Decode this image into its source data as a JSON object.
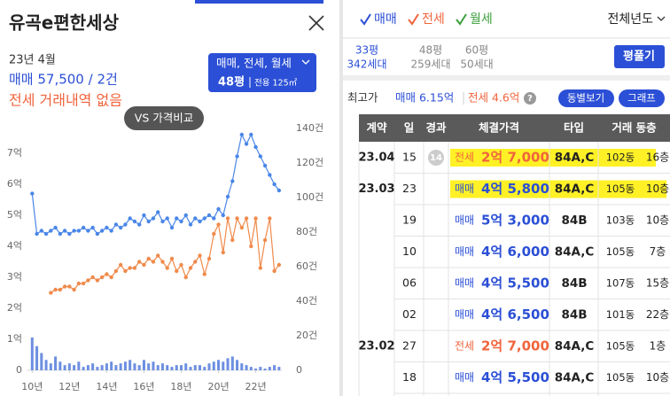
{
  "header": {
    "title": "유곡e편한세상"
  },
  "summary": {
    "date": "23년 4월",
    "trade": "매매 57,500 / 2건",
    "jeonse": "전세 거래내역 없음",
    "filter": "매매, 전세, 월세",
    "size": "48평",
    "exclusive": "전용 125㎡",
    "compare": "VS 가격비교"
  },
  "chart_data": {
    "type": "line",
    "x": [
      2010,
      2010.25,
      2010.5,
      2010.75,
      2011,
      2011.25,
      2011.5,
      2011.75,
      2012,
      2012.25,
      2012.5,
      2012.75,
      2013,
      2013.25,
      2013.5,
      2013.75,
      2014,
      2014.25,
      2014.5,
      2014.75,
      2015,
      2015.25,
      2015.5,
      2015.75,
      2016,
      2016.25,
      2016.5,
      2016.75,
      2017,
      2017.25,
      2017.5,
      2017.75,
      2018,
      2018.25,
      2018.5,
      2018.75,
      2019,
      2019.25,
      2019.5,
      2019.75,
      2020,
      2020.25,
      2020.5,
      2020.75,
      2021,
      2021.25,
      2021.5,
      2021.75,
      2022,
      2022.25,
      2022.5,
      2022.75,
      2023,
      2023.25
    ],
    "series": [
      {
        "color": "#4a86e8",
        "values": [
          5.7,
          4.4,
          4.5,
          4.4,
          4.5,
          4.6,
          4.4,
          4.5,
          4.4,
          4.5,
          4.5,
          4.6,
          4.5,
          4.6,
          4.4,
          4.5,
          4.6,
          4.5,
          4.7,
          4.6,
          4.7,
          4.9,
          4.8,
          4.7,
          5.0,
          4.8,
          4.9,
          5.1,
          4.8,
          4.9,
          4.6,
          4.9,
          4.8,
          5.0,
          4.7,
          4.9,
          4.8,
          4.9,
          5.0,
          4.9,
          5.2,
          5.0,
          5.6,
          6.1,
          6.9,
          7.6,
          7.3,
          7.6,
          7.2,
          6.9,
          6.6,
          6.3,
          6.0,
          5.8
        ]
      },
      {
        "color": "#f08a4b",
        "values": [
          null,
          null,
          null,
          null,
          2.5,
          2.6,
          2.6,
          2.7,
          2.7,
          2.6,
          2.8,
          2.8,
          2.9,
          3.0,
          2.9,
          3.0,
          3.1,
          3.0,
          3.2,
          3.4,
          3.2,
          3.3,
          3.3,
          3.5,
          3.4,
          3.6,
          3.5,
          3.7,
          3.5,
          3.3,
          3.6,
          3.2,
          3.4,
          3.0,
          3.3,
          3.5,
          3.7,
          3.1,
          3.6,
          4.4,
          4.7,
          3.8,
          4.9,
          4.2,
          4.9,
          4.6,
          4.9,
          4.0,
          4.9,
          3.3,
          4.2,
          4.9,
          3.2,
          3.4
        ]
      },
      {
        "type": "bar",
        "axis": "y2",
        "color": "#6c8fe0",
        "values": [
          19,
          14,
          10,
          6,
          4,
          8,
          5,
          3,
          4,
          3,
          5,
          2,
          3,
          4,
          2,
          3,
          4,
          5,
          3,
          4,
          5,
          6,
          4,
          3,
          6,
          4,
          5,
          3,
          4,
          3,
          2,
          3,
          3,
          4,
          2,
          3,
          3,
          2,
          4,
          5,
          6,
          5,
          7,
          8,
          6,
          4,
          3,
          2,
          1,
          2,
          1,
          2,
          3,
          2
        ]
      }
    ],
    "xlim": [
      2009.7,
      2023.4
    ],
    "xticks": [
      {
        "value": 2010,
        "label": "10년"
      },
      {
        "value": 2012,
        "label": "12년"
      },
      {
        "value": 2014,
        "label": "14년"
      },
      {
        "value": 2016,
        "label": "16년"
      },
      {
        "value": 2018,
        "label": "18년"
      },
      {
        "value": 2020,
        "label": "20년"
      },
      {
        "value": 2022,
        "label": "22년"
      }
    ],
    "ylim": [
      0,
      7.8
    ],
    "yticks": [
      0,
      {
        "value": 1,
        "label": "1억"
      },
      {
        "value": 2,
        "label": "2억"
      },
      {
        "value": 3,
        "label": "3억"
      },
      {
        "value": 4,
        "label": "4억"
      },
      {
        "value": 5,
        "label": "5억"
      },
      {
        "value": 6,
        "label": "6억"
      },
      {
        "value": 7,
        "label": "7억"
      }
    ],
    "y2lim": [
      0,
      140
    ],
    "y2ticks": [
      0,
      {
        "value": 20,
        "label": "20건"
      },
      {
        "value": 40,
        "label": "40건"
      },
      {
        "value": 60,
        "label": "60건"
      },
      {
        "value": 80,
        "label": "80건"
      },
      {
        "value": 100,
        "label": "100건"
      },
      {
        "value": 120,
        "label": "120건"
      },
      {
        "value": 140,
        "label": "140건"
      }
    ]
  },
  "filters": {
    "trade": "매매",
    "jeonse": "전세",
    "monthly": "월세",
    "period": "전체년도"
  },
  "sizes": [
    {
      "area": "33평",
      "households": "342세대",
      "active": true
    },
    {
      "area": "48평",
      "households": "259세대",
      "active": false
    },
    {
      "area": "60평",
      "households": "50세대",
      "active": false
    }
  ],
  "size_button": "평풀기",
  "highs": {
    "label": "최고가",
    "trade": "매매 6.15억",
    "jeonse": "전세 4.6억",
    "help": "?",
    "by_dong": "동별보기",
    "graph": "그래프"
  },
  "table": {
    "headers": [
      "계약",
      "일",
      "경과",
      "체결가격",
      "타입",
      "거래 동층"
    ],
    "rows": [
      {
        "month": "23.04",
        "day": "15",
        "elapsed": "14",
        "kind": "전세",
        "price": "2억 7,000",
        "type": "84A,C",
        "dong": "102동",
        "floor": "16층",
        "highlight": true
      },
      {
        "month": "23.03",
        "day": "23",
        "kind": "매매",
        "price": "4억 5,800",
        "type": "84A,C",
        "dong": "105동",
        "floor": "10층",
        "highlight": true
      },
      {
        "day": "19",
        "kind": "매매",
        "price": "5억 3,000",
        "type": "84B",
        "dong": "103동",
        "floor": "10층"
      },
      {
        "day": "10",
        "kind": "매매",
        "price": "4억 6,000",
        "type": "84A,C",
        "dong": "105동",
        "floor": "7층"
      },
      {
        "day": "06",
        "kind": "매매",
        "price": "4억 5,500",
        "type": "84B",
        "dong": "107동",
        "floor": "15층"
      },
      {
        "day": "02",
        "kind": "매매",
        "price": "4억 6,500",
        "type": "84B",
        "dong": "101동",
        "floor": "22층"
      },
      {
        "month": "23.02",
        "day": "27",
        "kind": "전세",
        "price": "2억 7,000",
        "type": "84A,C",
        "dong": "105동",
        "floor": "1층"
      },
      {
        "day": "18",
        "kind": "매매",
        "price": "4억 5,500",
        "type": "84A,C",
        "dong": "105동",
        "floor": "10층"
      }
    ]
  }
}
